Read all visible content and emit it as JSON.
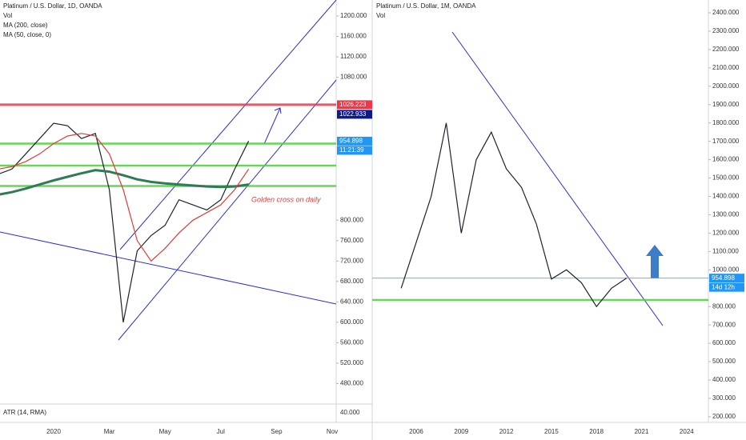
{
  "chart_data": [
    {
      "type": "line",
      "title": "Platinum / U.S. Dollar, 1D, OANDA",
      "volume_label": "Vol",
      "categories": [
        null,
        null,
        null,
        null,
        "2020",
        null,
        null,
        null,
        "Mar",
        null,
        null,
        null,
        "May",
        null,
        null,
        null,
        "Jul",
        null,
        null,
        null,
        "Sep",
        null,
        null,
        null,
        "Nov"
      ],
      "series": [
        {
          "color": "#1e222d",
          "values": [
            890,
            900,
            930,
            960,
            990,
            985,
            960,
            970,
            860,
            600,
            740,
            770,
            790,
            840,
            830,
            820,
            840,
            900,
            955,
            null,
            null,
            null,
            null,
            null,
            null
          ]
        },
        {
          "name": "MA (200, close)",
          "color": "#2e7d52",
          "values": [
            850,
            855,
            862,
            870,
            878,
            885,
            892,
            898,
            895,
            888,
            880,
            875,
            872,
            870,
            868,
            866,
            865,
            866,
            870,
            null,
            null,
            null,
            null,
            null,
            null
          ]
        },
        {
          "name": "MA (50, close, 0)",
          "color": "#e53935",
          "values": [
            900,
            905,
            915,
            930,
            950,
            965,
            970,
            965,
            930,
            860,
            760,
            720,
            745,
            775,
            800,
            815,
            830,
            860,
            900,
            null,
            null,
            null,
            null,
            null,
            null
          ]
        }
      ],
      "ylim": [
        440,
        1200
      ],
      "yticks": [
        {
          "value": 480,
          "label": "480.000"
        },
        {
          "value": 520,
          "label": "520.000"
        },
        {
          "value": 560,
          "label": "560.000"
        },
        {
          "value": 600,
          "label": "600.000"
        },
        {
          "value": 640,
          "label": "640.000"
        },
        {
          "value": 680,
          "label": "680.000"
        },
        {
          "value": 720,
          "label": "720.000"
        },
        {
          "value": 760,
          "label": "760.000"
        },
        {
          "value": 800,
          "label": "800.000"
        },
        {
          "value": 1080,
          "label": "1080.000"
        },
        {
          "value": 1120,
          "label": "1120.000"
        },
        {
          "value": 1160,
          "label": "1160.000"
        },
        {
          "value": 1200,
          "label": "1200.000"
        }
      ],
      "levels": [
        {
          "value": 1026.223,
          "color": "#f23645"
        },
        {
          "value": 950,
          "color": "#4cd137"
        },
        {
          "value": 907,
          "color": "#4cd137"
        },
        {
          "value": 867,
          "color": "#4cd137"
        }
      ],
      "price_labels": [
        {
          "value": 1026.223,
          "color": "#f23645"
        },
        {
          "value": 1022.933,
          "color": "#0d1a8c"
        },
        {
          "value": 954.898,
          "color": "#2196f3"
        }
      ],
      "countdown": "11:21:39",
      "annotation": "Golden cross on daily",
      "atr": {
        "label": "ATR (14, RMA)",
        "yticks": [
          {
            "value": 40,
            "label": "40.000"
          }
        ]
      }
    },
    {
      "type": "line",
      "title": "Platinum / U.S. Dollar, 1M, OANDA",
      "volume_label": "Vol",
      "categories": [
        null,
        "2006",
        null,
        null,
        "2009",
        null,
        null,
        "2012",
        null,
        null,
        "2015",
        null,
        null,
        "2018",
        null,
        null,
        "2021",
        null,
        null,
        "2024"
      ],
      "series": [
        {
          "color": "#1e222d",
          "values": [
            900,
            1150,
            1400,
            1800,
            1200,
            1600,
            1750,
            1550,
            1450,
            1250,
            950,
            1000,
            930,
            800,
            900,
            955,
            null,
            null,
            null,
            null
          ]
        }
      ],
      "ylim": [
        180,
        2400
      ],
      "yticks": [
        {
          "value": 200,
          "label": "200.000"
        },
        {
          "value": 300,
          "label": "300.000"
        },
        {
          "value": 400,
          "label": "400.000"
        },
        {
          "value": 500,
          "label": "500.000"
        },
        {
          "value": 600,
          "label": "600.000"
        },
        {
          "value": 700,
          "label": "700.000"
        },
        {
          "value": 800,
          "label": "800.000"
        },
        {
          "value": 1000,
          "label": "1000.000"
        },
        {
          "value": 1100,
          "label": "1100.000"
        },
        {
          "value": 1200,
          "label": "1200.000"
        },
        {
          "value": 1300,
          "label": "1300.000"
        },
        {
          "value": 1400,
          "label": "1400.000"
        },
        {
          "value": 1500,
          "label": "1500.000"
        },
        {
          "value": 1600,
          "label": "1600.000"
        },
        {
          "value": 1700,
          "label": "1700.000"
        },
        {
          "value": 1800,
          "label": "1800.000"
        },
        {
          "value": 1900,
          "label": "1900.000"
        },
        {
          "value": 2000,
          "label": "2000.000"
        },
        {
          "value": 2100,
          "label": "2100.000"
        },
        {
          "value": 2200,
          "label": "2200.000"
        },
        {
          "value": 2300,
          "label": "2300.000"
        },
        {
          "value": 2400,
          "label": "2400.000"
        }
      ],
      "levels": [
        {
          "value": 954.898,
          "color": "#5aa0e0"
        },
        {
          "value": 836,
          "color": "#4cd137"
        }
      ],
      "price_labels": [
        {
          "value": 954.898,
          "color": "#2196f3"
        }
      ],
      "countdown": "14d 12h"
    }
  ]
}
